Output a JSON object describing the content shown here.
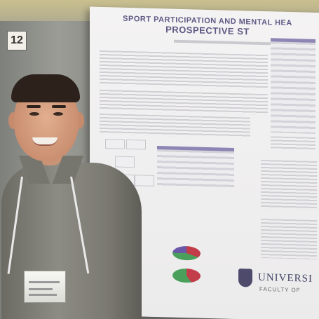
{
  "scene": {
    "board_number": "12",
    "poster": {
      "title_line1": "SPORT PARTICIPATION AND MENTAL HEA",
      "title_line2": "PROSPECTIVE ST",
      "university_text": "UNIVERSI",
      "university_subtext": "FACULTY OF"
    }
  }
}
